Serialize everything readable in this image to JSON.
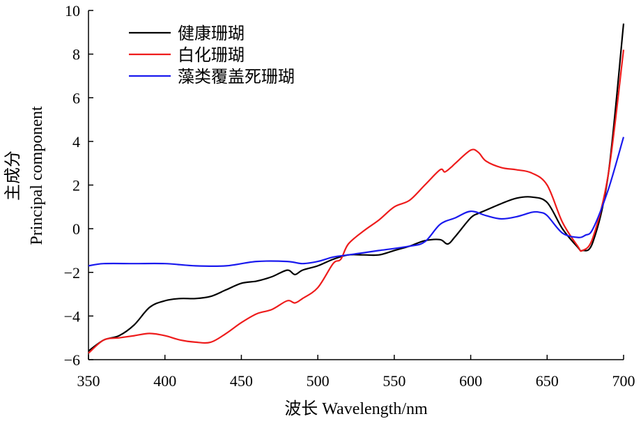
{
  "chart_data": {
    "type": "line",
    "xlabel": "波长 Wavelength/nm",
    "ylabel": "主成分",
    "ylabel_en": "Principal component",
    "xlim": [
      350,
      700
    ],
    "ylim": [
      -6,
      10
    ],
    "xticks": [
      350,
      400,
      450,
      500,
      550,
      600,
      650,
      700
    ],
    "yticks": [
      -6,
      -4,
      -2,
      0,
      2,
      4,
      6,
      8,
      10
    ],
    "grid": false,
    "legend_position": "top-left",
    "series": [
      {
        "name": "健康珊瑚",
        "color": "#000000",
        "x": [
          350,
          360,
          370,
          380,
          390,
          400,
          410,
          420,
          430,
          440,
          450,
          460,
          470,
          480,
          485,
          490,
          500,
          510,
          520,
          530,
          540,
          550,
          560,
          570,
          580,
          585,
          590,
          600,
          605,
          610,
          620,
          630,
          640,
          650,
          660,
          670,
          673,
          680,
          690,
          700
        ],
        "y": [
          -5.6,
          -5.1,
          -4.9,
          -4.4,
          -3.6,
          -3.3,
          -3.2,
          -3.2,
          -3.1,
          -2.8,
          -2.5,
          -2.4,
          -2.2,
          -1.9,
          -2.1,
          -1.9,
          -1.7,
          -1.4,
          -1.2,
          -1.2,
          -1.2,
          -1.0,
          -0.8,
          -0.55,
          -0.5,
          -0.7,
          -0.35,
          0.5,
          0.7,
          0.85,
          1.15,
          1.4,
          1.45,
          1.2,
          0.0,
          -0.85,
          -1.0,
          -0.6,
          2.5,
          9.4
        ]
      },
      {
        "name": "白化珊瑚",
        "color": "#ee1c1c",
        "x": [
          350,
          360,
          370,
          380,
          390,
          400,
          410,
          420,
          430,
          440,
          450,
          460,
          470,
          480,
          485,
          490,
          500,
          510,
          515,
          520,
          530,
          540,
          550,
          560,
          570,
          580,
          583,
          587,
          590,
          600,
          605,
          610,
          620,
          630,
          640,
          650,
          660,
          670,
          673,
          680,
          690,
          700
        ],
        "y": [
          -5.7,
          -5.1,
          -5.0,
          -4.9,
          -4.8,
          -4.9,
          -5.1,
          -5.2,
          -5.2,
          -4.8,
          -4.3,
          -3.9,
          -3.7,
          -3.3,
          -3.4,
          -3.2,
          -2.7,
          -1.6,
          -1.4,
          -0.7,
          -0.1,
          0.4,
          1.0,
          1.3,
          2.0,
          2.7,
          2.6,
          2.8,
          3.0,
          3.6,
          3.5,
          3.1,
          2.8,
          2.7,
          2.55,
          2.0,
          0.3,
          -0.8,
          -1.0,
          -0.4,
          2.5,
          8.2
        ]
      },
      {
        "name": "藻类覆盖死珊瑚",
        "color": "#1a1aee",
        "x": [
          350,
          360,
          380,
          400,
          420,
          440,
          460,
          480,
          490,
          500,
          510,
          520,
          530,
          540,
          560,
          570,
          580,
          590,
          600,
          610,
          620,
          630,
          640,
          645,
          650,
          660,
          670,
          675,
          680,
          690,
          700
        ],
        "y": [
          -1.7,
          -1.6,
          -1.6,
          -1.6,
          -1.7,
          -1.7,
          -1.5,
          -1.5,
          -1.6,
          -1.5,
          -1.3,
          -1.2,
          -1.1,
          -1.0,
          -0.8,
          -0.6,
          0.2,
          0.5,
          0.8,
          0.6,
          0.45,
          0.55,
          0.75,
          0.75,
          0.6,
          -0.2,
          -0.4,
          -0.3,
          0.0,
          1.8,
          4.2
        ]
      }
    ]
  }
}
